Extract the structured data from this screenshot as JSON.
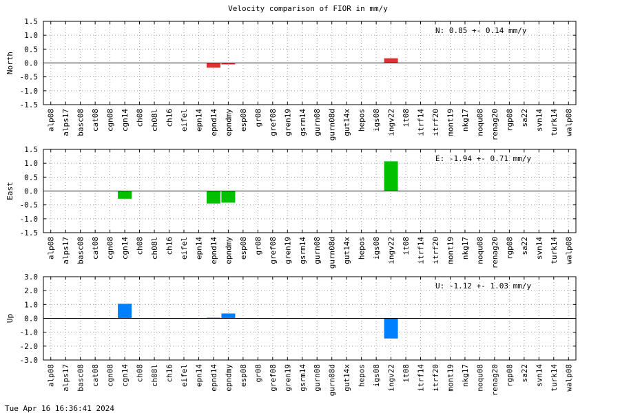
{
  "timestamp": "Tue Apr 16 16:36:41 2024",
  "chart_data": {
    "type": "bar",
    "title": "Velocity comparison of FIOR in mm/y",
    "categories": [
      "alp08",
      "alps17",
      "basc08",
      "cat08",
      "cgn08",
      "cgn14",
      "ch08",
      "ch08l",
      "ch16",
      "eifel",
      "epn14",
      "epnd14",
      "epndmy",
      "esp08",
      "gr08",
      "gref08",
      "gren19",
      "gsrm14",
      "gurn08",
      "gurn08d",
      "gut14x",
      "hepos",
      "igs08",
      "ingv22",
      "it08",
      "itrf14",
      "itrf20",
      "mont19",
      "nkg17",
      "noqu08",
      "renag20",
      "rgp08",
      "sa22",
      "svn14",
      "turk14",
      "walp08"
    ],
    "grid": true,
    "panels": [
      {
        "ylabel": "North",
        "color": "#e03030",
        "ylim": [
          -1.5,
          1.5
        ],
        "yticks": [
          "-1.5",
          "-1.0",
          "-0.5",
          "0.0",
          "0.5",
          "1.0",
          "1.5"
        ],
        "annotation": "N:   0.85 +-  0.14 mm/y",
        "values": [
          0,
          0,
          0,
          0,
          0,
          0,
          0,
          0,
          0,
          0,
          0,
          -0.17,
          -0.05,
          0,
          0,
          0,
          0,
          0,
          0,
          0,
          0,
          0,
          0,
          0.17,
          0,
          0,
          0,
          0,
          0,
          0,
          0,
          0,
          0,
          0,
          0,
          0
        ]
      },
      {
        "ylabel": "East",
        "color": "#00c000",
        "ylim": [
          -1.5,
          1.5
        ],
        "yticks": [
          "-1.5",
          "-1.0",
          "-0.5",
          "0.0",
          "0.5",
          "1.0",
          "1.5"
        ],
        "annotation": "E:  -1.94 +-  0.71 mm/y",
        "values": [
          0,
          0,
          0,
          0,
          0,
          -0.28,
          0,
          0,
          0,
          0,
          0,
          -0.45,
          -0.42,
          0,
          0,
          0,
          0,
          0,
          0,
          0,
          0,
          0,
          0,
          1.07,
          0,
          0,
          0,
          0,
          0,
          0,
          0,
          0,
          0,
          0,
          0,
          0
        ]
      },
      {
        "ylabel": "Up",
        "color": "#0080ff",
        "ylim": [
          -3.0,
          3.0
        ],
        "yticks": [
          "-3.0",
          "-2.0",
          "-1.0",
          "0.0",
          "1.0",
          "2.0",
          "3.0"
        ],
        "annotation": "U:  -1.12 +-  1.03 mm/y",
        "values": [
          0,
          0,
          0,
          0,
          0,
          1.05,
          0,
          0,
          0,
          0,
          0,
          0.05,
          0.35,
          0,
          0,
          0,
          0,
          0,
          0,
          0,
          0,
          0,
          0,
          -1.45,
          0,
          0,
          0,
          0,
          0,
          0,
          0,
          0,
          0,
          0,
          0,
          0
        ]
      }
    ]
  }
}
